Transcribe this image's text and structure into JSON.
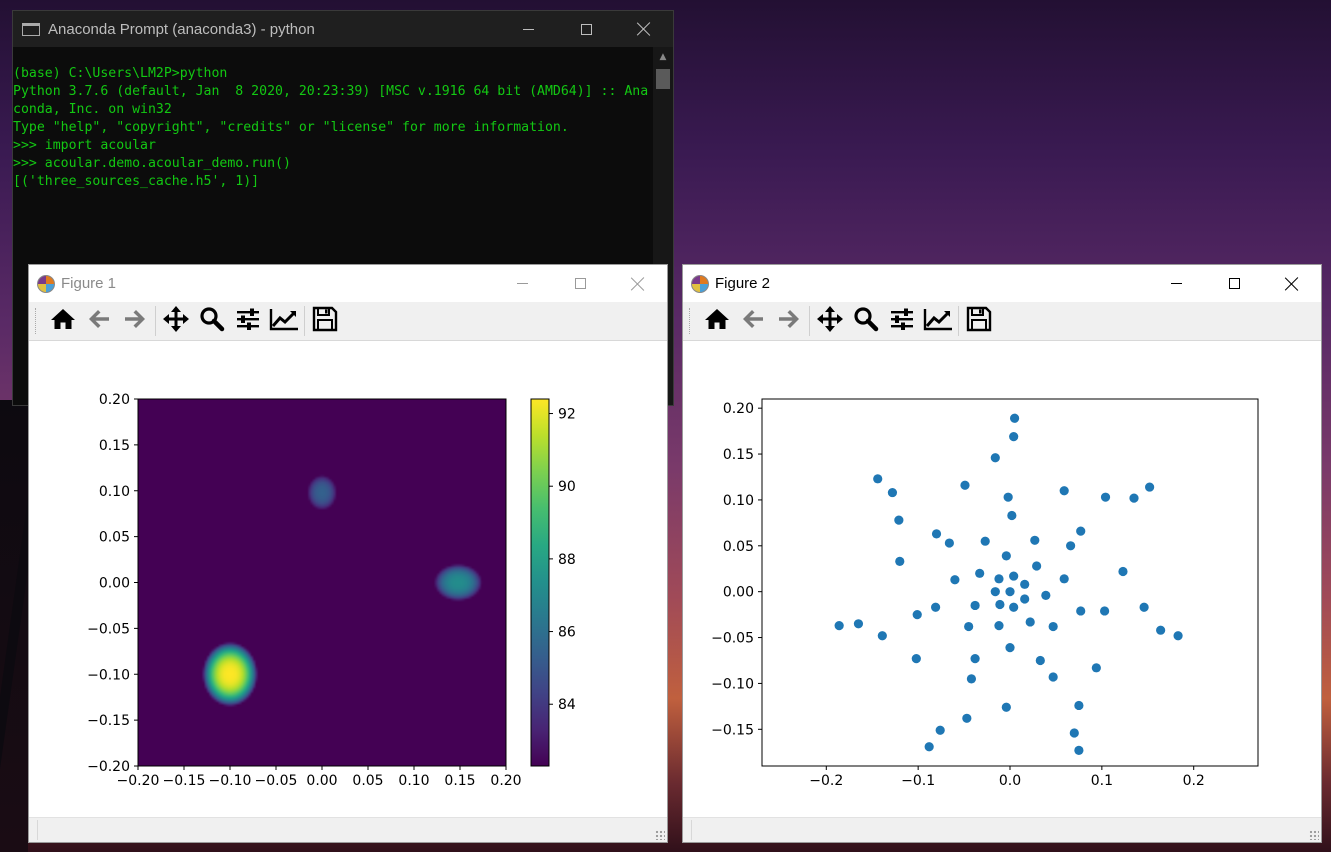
{
  "terminal": {
    "title": "Anaconda Prompt (anaconda3) - python",
    "lines": [
      "(base) C:\\Users\\LM2P>python",
      "Python 3.7.6 (default, Jan  8 2020, 20:23:39) [MSC v.1916 64 bit (AMD64)] :: Ana",
      "conda, Inc. on win32",
      "Type \"help\", \"copyright\", \"credits\" or \"license\" for more information.",
      ">>> import acoular",
      ">>> acoular.demo.acoular_demo.run()",
      "[('three_sources_cache.h5', 1)]"
    ],
    "text_color": "#13c813"
  },
  "figure1": {
    "title": "Figure 1"
  },
  "figure2": {
    "title": "Figure 2"
  },
  "toolbar_icons": [
    "home-icon",
    "back-arrow-icon",
    "forward-arrow-icon",
    "pan-icon",
    "zoom-icon",
    "configure-subplots-icon",
    "edit-axis-icon",
    "save-icon"
  ],
  "chart_data": [
    {
      "type": "heatmap",
      "xlim": [
        -0.2,
        0.2
      ],
      "ylim": [
        -0.2,
        0.2
      ],
      "xticks": [
        "−0.20",
        "−0.15",
        "−0.10",
        "−0.05",
        "0.00",
        "0.05",
        "0.10",
        "0.15",
        "0.20"
      ],
      "yticks": [
        "0.20",
        "0.15",
        "0.10",
        "0.05",
        "0.00",
        "−0.05",
        "−0.10",
        "−0.15",
        "−0.20"
      ],
      "colormap": "viridis",
      "colorbar": {
        "min": 82.3,
        "max": 92.4,
        "ticks": [
          "92",
          "90",
          "88",
          "86",
          "84"
        ],
        "tick_values": [
          92,
          90,
          88,
          86,
          84
        ]
      },
      "background_value": 82.3,
      "sources": [
        {
          "x": -0.1,
          "y": -0.1,
          "peak": 92.4,
          "spread_x": 0.03,
          "spread_y": 0.035
        },
        {
          "x": 0.148,
          "y": 0.0,
          "peak": 87.2,
          "spread_x": 0.026,
          "spread_y": 0.02
        },
        {
          "x": 0.0,
          "y": 0.098,
          "peak": 85.4,
          "spread_x": 0.016,
          "spread_y": 0.019
        }
      ]
    },
    {
      "type": "scatter",
      "xlim": [
        -0.27,
        0.27
      ],
      "ylim": [
        -0.19,
        0.21
      ],
      "xticks": [
        "−0.2",
        "−0.1",
        "0.0",
        "0.1",
        "0.2"
      ],
      "xtick_values": [
        -0.2,
        -0.1,
        0.0,
        0.1,
        0.2
      ],
      "yticks": [
        "0.20",
        "0.15",
        "0.10",
        "0.05",
        "0.00",
        "−0.05",
        "−0.10",
        "−0.15"
      ],
      "ytick_values": [
        0.2,
        0.15,
        0.1,
        0.05,
        0.0,
        -0.05,
        -0.1,
        -0.15
      ],
      "marker_color": "#1f77b4",
      "points": [
        [
          0.005,
          0.189
        ],
        [
          0.004,
          0.169
        ],
        [
          -0.016,
          0.146
        ],
        [
          -0.002,
          0.103
        ],
        [
          0.002,
          0.083
        ],
        [
          -0.049,
          0.116
        ],
        [
          -0.144,
          0.123
        ],
        [
          -0.128,
          0.108
        ],
        [
          -0.121,
          0.078
        ],
        [
          -0.12,
          0.033
        ],
        [
          -0.08,
          0.063
        ],
        [
          -0.066,
          0.053
        ],
        [
          -0.027,
          0.055
        ],
        [
          -0.004,
          0.039
        ],
        [
          0.027,
          0.056
        ],
        [
          0.059,
          0.11
        ],
        [
          0.104,
          0.103
        ],
        [
          0.135,
          0.102
        ],
        [
          0.152,
          0.114
        ],
        [
          0.077,
          0.066
        ],
        [
          0.066,
          0.05
        ],
        [
          0.029,
          0.028
        ],
        [
          0.059,
          0.014
        ],
        [
          0.123,
          0.022
        ],
        [
          -0.06,
          0.013
        ],
        [
          -0.033,
          0.02
        ],
        [
          -0.012,
          0.014
        ],
        [
          0.004,
          0.017
        ],
        [
          0.016,
          0.008
        ],
        [
          -0.016,
          0.0
        ],
        [
          0.0,
          0.0
        ],
        [
          0.016,
          -0.008
        ],
        [
          0.039,
          -0.004
        ],
        [
          -0.038,
          -0.015
        ],
        [
          -0.011,
          -0.014
        ],
        [
          0.004,
          -0.017
        ],
        [
          -0.081,
          -0.017
        ],
        [
          -0.101,
          -0.025
        ],
        [
          -0.045,
          -0.038
        ],
        [
          -0.012,
          -0.037
        ],
        [
          0.022,
          -0.033
        ],
        [
          0.047,
          -0.038
        ],
        [
          0.077,
          -0.021
        ],
        [
          0.103,
          -0.021
        ],
        [
          0.146,
          -0.017
        ],
        [
          0.164,
          -0.042
        ],
        [
          0.183,
          -0.048
        ],
        [
          -0.186,
          -0.037
        ],
        [
          -0.165,
          -0.035
        ],
        [
          -0.139,
          -0.048
        ],
        [
          0.0,
          -0.061
        ],
        [
          -0.102,
          -0.073
        ],
        [
          -0.038,
          -0.073
        ],
        [
          0.033,
          -0.075
        ],
        [
          0.094,
          -0.083
        ],
        [
          -0.042,
          -0.095
        ],
        [
          0.047,
          -0.093
        ],
        [
          -0.004,
          -0.126
        ],
        [
          0.075,
          -0.124
        ],
        [
          -0.047,
          -0.138
        ],
        [
          -0.076,
          -0.151
        ],
        [
          0.07,
          -0.154
        ],
        [
          -0.088,
          -0.169
        ],
        [
          0.075,
          -0.173
        ]
      ]
    }
  ]
}
